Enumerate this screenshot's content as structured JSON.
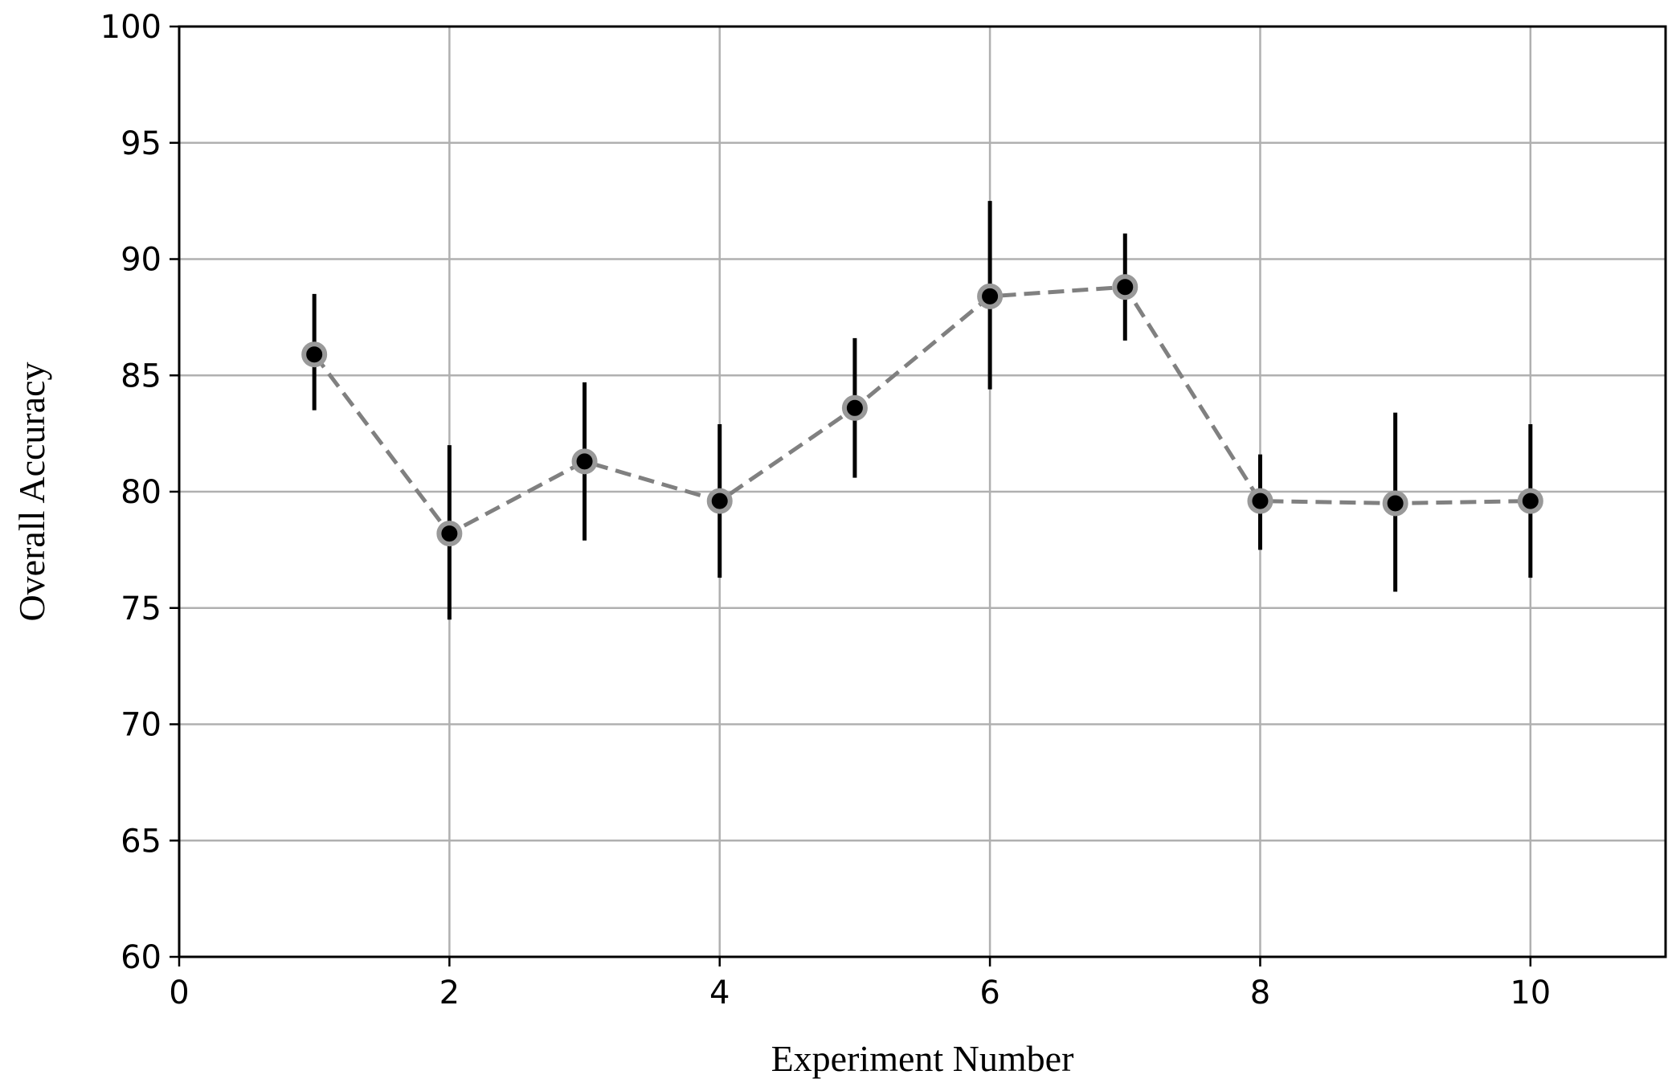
{
  "chart_data": {
    "type": "line",
    "title": "",
    "xlabel": "Experiment Number",
    "ylabel": "Overall Accuracy",
    "xlim": [
      0,
      11
    ],
    "ylim": [
      60,
      100
    ],
    "xticks": [
      0,
      2,
      4,
      6,
      8,
      10
    ],
    "yticks": [
      60,
      65,
      70,
      75,
      80,
      85,
      90,
      95,
      100
    ],
    "grid": true,
    "legend": "none",
    "colors": {
      "line": "#808080",
      "marker": "#000000",
      "marker_edge": "#999999",
      "error_bar": "#000000",
      "grid": "#b0b0b0"
    },
    "line_style": "dashed",
    "series": [
      {
        "x": [
          1,
          2,
          3,
          4,
          5,
          6,
          7,
          8,
          9,
          10
        ],
        "y": [
          85.9,
          78.2,
          81.3,
          79.6,
          83.6,
          88.4,
          88.8,
          79.6,
          79.5,
          79.6
        ],
        "yerr_low": [
          83.5,
          74.5,
          77.9,
          76.3,
          80.6,
          84.4,
          86.5,
          77.5,
          75.7,
          76.3
        ],
        "yerr_high": [
          88.5,
          82.0,
          84.7,
          82.9,
          86.6,
          92.5,
          91.1,
          81.6,
          83.4,
          82.9
        ]
      }
    ]
  }
}
